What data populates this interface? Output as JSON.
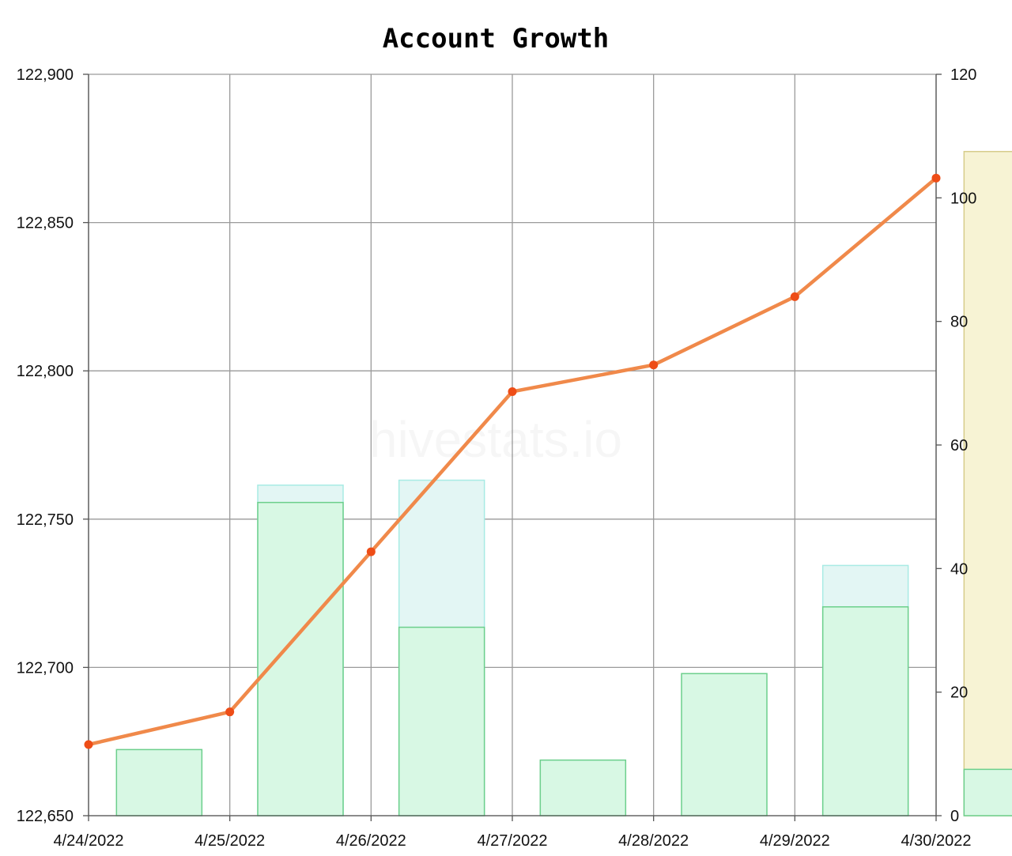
{
  "chart_data": {
    "type": "bar+line",
    "title": "Account Growth",
    "watermark": "hivestats.io",
    "x": [
      "4/24/2022",
      "4/25/2022",
      "4/26/2022",
      "4/27/2022",
      "4/28/2022",
      "4/29/2022",
      "4/30/2022"
    ],
    "y_left": {
      "range": [
        122650,
        122900
      ],
      "ticks": [
        122650,
        122700,
        122750,
        122800,
        122850,
        122900
      ],
      "tick_labels": [
        "122,650",
        "122,700",
        "122,750",
        "122,800",
        "122,850",
        "122,900"
      ]
    },
    "y_right": {
      "range": [
        0,
        120
      ],
      "ticks": [
        0,
        20,
        40,
        60,
        80,
        100,
        120
      ],
      "tick_labels": [
        "0",
        "20",
        "40",
        "60",
        "80",
        "100",
        "120"
      ]
    },
    "grid": true,
    "series": [
      {
        "kind": "line",
        "axis": "left",
        "color": "#f0894a",
        "marker_color": "#ee4d17",
        "values": [
          122674,
          122685,
          122739,
          122793,
          122802,
          122825,
          122865
        ]
      },
      {
        "kind": "bar",
        "axis": "right",
        "fill": "#d8f8e4",
        "stroke": "#6ccf8c",
        "values": [
          10.7,
          50.7,
          30.5,
          9.0,
          23.0,
          33.8,
          7.5
        ]
      },
      {
        "kind": "bar",
        "axis": "right",
        "fill": "#e3f6f4",
        "stroke": "#a8ebe4",
        "values": [
          null,
          53.5,
          54.3,
          null,
          null,
          40.5,
          null
        ]
      },
      {
        "kind": "bar",
        "axis": "right",
        "fill": "#f7f3d4",
        "stroke": "#d6cc8a",
        "values": [
          null,
          null,
          null,
          null,
          null,
          null,
          107.5
        ]
      }
    ]
  }
}
